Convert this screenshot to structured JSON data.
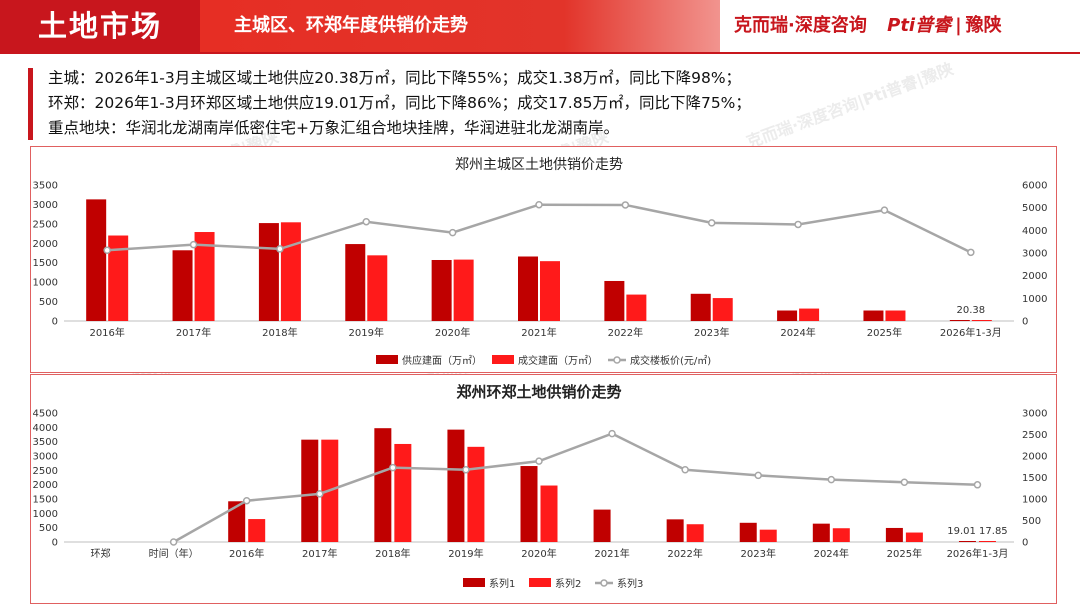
{
  "header": {
    "section": "土地市场",
    "subtitle": "主城区、环郑年度供销价走势",
    "brand_cn": "克而瑞·深度咨询",
    "brand_pp": "Pti普睿",
    "brand_region": "豫陕",
    "brand_sep": "|"
  },
  "summary": [
    "主城：2026年1-3月主城区域土地供应20.38万㎡，同比下降55%；成交1.38万㎡，同比下降98%；",
    "环郑：2026年1-3月环郑区域土地供应19.01万㎡，同比下降86%；成交17.85万㎡，同比下降75%；",
    "重点地块：华润北龙湖南岸低密住宅+万象汇组合地块挂牌，华润进驻北龙湖南岸。"
  ],
  "watermark": "克而瑞·深度咨询|Pti普睿|豫陕",
  "colors": {
    "series1": "#c00000",
    "series2": "#ff1a1a",
    "series3": "#a6a6a6",
    "accent": "#c8161d"
  },
  "chart_data": [
    {
      "type": "bar",
      "title": "郑州主城区土地供销价走势",
      "categories": [
        "2016年",
        "2017年",
        "2018年",
        "2019年",
        "2020年",
        "2021年",
        "2022年",
        "2023年",
        "2024年",
        "2025年",
        "2026年1-3月"
      ],
      "series": [
        {
          "name": "供应建面（万㎡）",
          "axis": "left",
          "values": [
            3130,
            1820,
            2520,
            1980,
            1570,
            1660,
            1030,
            700,
            270,
            270,
            20.38
          ]
        },
        {
          "name": "成交建面（万㎡）",
          "axis": "left",
          "values": [
            2200,
            2290,
            2540,
            1690,
            1580,
            1540,
            680,
            590,
            320,
            270,
            1.38
          ]
        },
        {
          "name": "成交楼板价(元/㎡)",
          "axis": "right",
          "kind": "line",
          "values": [
            3120,
            3370,
            3180,
            4380,
            3900,
            5130,
            5120,
            4330,
            4260,
            4890,
            3030
          ]
        }
      ],
      "ylim": [
        0,
        3500
      ],
      "y_ticks": [
        0,
        500,
        1000,
        1500,
        2000,
        2500,
        3000,
        3500
      ],
      "y2lim": [
        0,
        6000
      ],
      "y2_ticks": [
        0,
        1000,
        2000,
        3000,
        4000,
        5000,
        6000
      ],
      "data_labels": [
        {
          "category_index": 10,
          "text": "20.38"
        }
      ],
      "legend_position": "bottom"
    },
    {
      "type": "bar",
      "title": "郑州环郑土地供销价走势",
      "categories": [
        "环郑",
        "时间（年）",
        "2016年",
        "2017年",
        "2018年",
        "2019年",
        "2020年",
        "2021年",
        "2022年",
        "2023年",
        "2024年",
        "2025年",
        "2026年1-3月"
      ],
      "series": [
        {
          "name": "系列1",
          "axis": "left",
          "values": [
            null,
            null,
            1420,
            3570,
            3970,
            3920,
            2650,
            1130,
            790,
            670,
            640,
            490,
            19.01
          ]
        },
        {
          "name": "系列2",
          "axis": "left",
          "values": [
            null,
            null,
            800,
            3570,
            3420,
            3320,
            1970,
            null,
            620,
            430,
            480,
            330,
            17.85
          ]
        },
        {
          "name": "系列3",
          "axis": "right",
          "kind": "line",
          "values": [
            null,
            0,
            960,
            1120,
            1730,
            1680,
            1880,
            2520,
            1680,
            1550,
            1450,
            1390,
            1330
          ]
        }
      ],
      "ylim": [
        0,
        4500
      ],
      "y_ticks": [
        0,
        500,
        1000,
        1500,
        2000,
        2500,
        3000,
        3500,
        4000,
        4500
      ],
      "y2lim": [
        0,
        3000
      ],
      "y2_ticks": [
        0,
        500,
        1000,
        1500,
        2000,
        2500,
        3000
      ],
      "data_labels": [
        {
          "category_index": 12,
          "text": "19.01  17.85"
        }
      ],
      "legend_position": "bottom"
    }
  ]
}
